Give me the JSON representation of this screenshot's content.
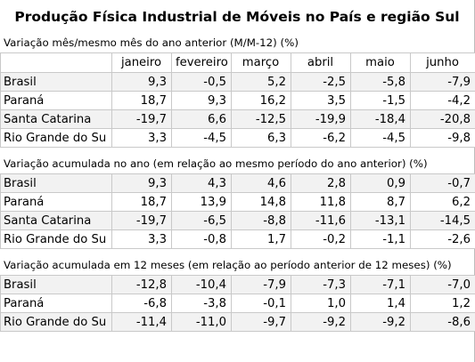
{
  "title": "Produção Física Industrial de Móveis no País e região Sul",
  "months": [
    "janeiro",
    "fevereiro",
    "março",
    "abril",
    "maio",
    "junho"
  ],
  "sections": [
    {
      "caption": "Variação mês/mesmo mês do ano anterior (M/M-12) (%)",
      "rows": [
        {
          "label": "Brasil",
          "values": [
            "9,3",
            "-0,5",
            "5,2",
            "-2,5",
            "-5,8",
            "-7,9"
          ]
        },
        {
          "label": "Paraná",
          "values": [
            "18,7",
            "9,3",
            "16,2",
            "3,5",
            "-1,5",
            "-4,2"
          ]
        },
        {
          "label": "Santa Catarina",
          "values": [
            "-19,7",
            "6,6",
            "-12,5",
            "-19,9",
            "-18,4",
            "-20,8"
          ]
        },
        {
          "label": "Rio Grande do Su",
          "values": [
            "3,3",
            "-4,5",
            "6,3",
            "-6,2",
            "-4,5",
            "-9,8"
          ]
        }
      ]
    },
    {
      "caption": "Variação acumulada no ano (em relação ao mesmo período do ano anterior) (%)",
      "rows": [
        {
          "label": "Brasil",
          "values": [
            "9,3",
            "4,3",
            "4,6",
            "2,8",
            "0,9",
            "-0,7"
          ]
        },
        {
          "label": "Paraná",
          "values": [
            "18,7",
            "13,9",
            "14,8",
            "11,8",
            "8,7",
            "6,2"
          ]
        },
        {
          "label": "Santa Catarina",
          "values": [
            "-19,7",
            "-6,5",
            "-8,8",
            "-11,6",
            "-13,1",
            "-14,5"
          ]
        },
        {
          "label": "Rio Grande do Su",
          "values": [
            "3,3",
            "-0,8",
            "1,7",
            "-0,2",
            "-1,1",
            "-2,6"
          ]
        }
      ]
    },
    {
      "caption": "Variação acumulada em 12 meses (em relação ao período anterior de 12 meses) (%)",
      "rows": [
        {
          "label": "Brasil",
          "values": [
            "-12,8",
            "-10,4",
            "-7,9",
            "-7,3",
            "-7,1",
            "-7,0"
          ]
        },
        {
          "label": "Paraná",
          "values": [
            "-6,8",
            "-3,8",
            "-0,1",
            "1,0",
            "1,4",
            "1,2"
          ]
        },
        {
          "label": "Rio Grande do Su",
          "values": [
            "-11,4",
            "-11,0",
            "-9,7",
            "-9,2",
            "-9,2",
            "-8,6"
          ]
        }
      ]
    }
  ]
}
